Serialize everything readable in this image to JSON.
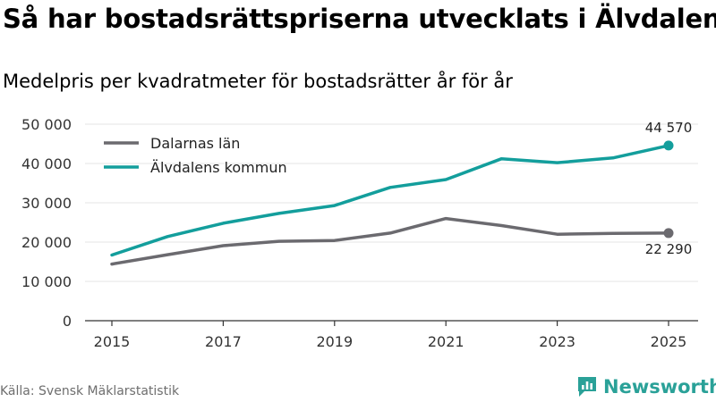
{
  "header": {
    "title": "Så har bostadsrättspriserna utvecklats i Älvdalen",
    "subtitle": "Medelpris per kvadratmeter för bostadsrätter år för år"
  },
  "footer": {
    "source": "Källa: Svensk Mäklarstatistik",
    "brand": "Newsworthy",
    "brand_icon": "newsworthy-logo-icon"
  },
  "colors": {
    "dalarna": "#6b6a6f",
    "alvdalen": "#139e9c",
    "grid": "#e6e6e6",
    "axis": "#333333",
    "brand": "#2aa198"
  },
  "chart_data": {
    "type": "line",
    "x": [
      2015,
      2016,
      2017,
      2018,
      2019,
      2020,
      2021,
      2022,
      2023,
      2024,
      2025
    ],
    "series": [
      {
        "name": "Dalarnas län",
        "values": [
          14400,
          16800,
          19100,
          20200,
          20400,
          22300,
          26000,
          24200,
          22000,
          22200,
          22290
        ],
        "end_label": "22 290"
      },
      {
        "name": "Älvdalens kommun",
        "values": [
          16700,
          21400,
          24800,
          27300,
          29300,
          33900,
          35900,
          41200,
          40200,
          41400,
          44570
        ],
        "end_label": "44 570"
      }
    ],
    "ylim": [
      0,
      50000
    ],
    "y_ticks": [
      0,
      10000,
      20000,
      30000,
      40000,
      50000
    ],
    "y_tick_labels": [
      "0",
      "10 000",
      "20 000",
      "30 000",
      "40 000",
      "50 000"
    ],
    "x_ticks": [
      2015,
      2017,
      2019,
      2021,
      2023,
      2025
    ],
    "x_tick_labels": [
      "2015",
      "2017",
      "2019",
      "2021",
      "2023",
      "2025"
    ],
    "grid": true,
    "legend": "top-left",
    "xlabel": "",
    "ylabel": ""
  }
}
